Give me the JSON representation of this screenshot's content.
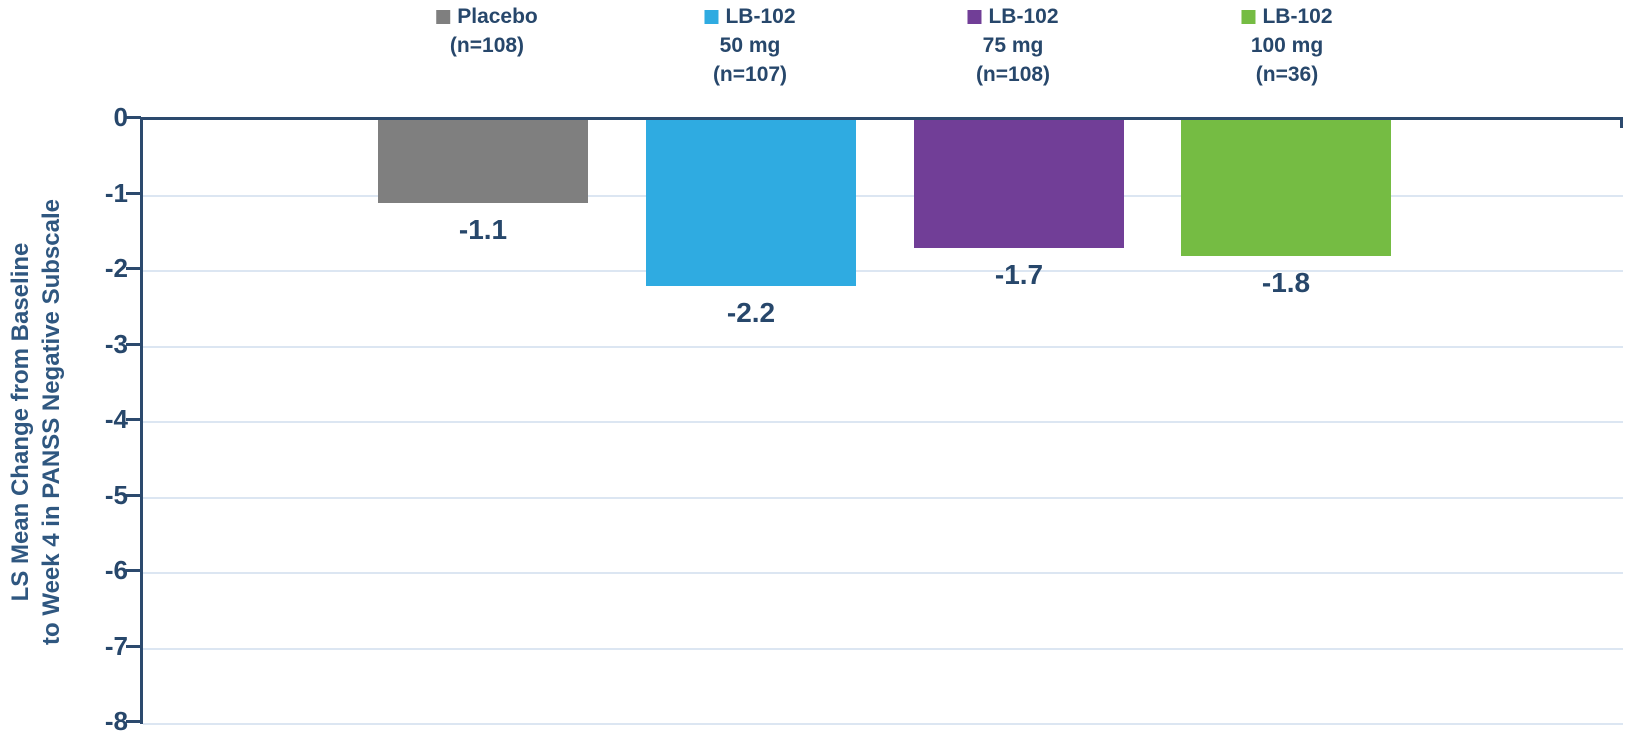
{
  "chart_data": {
    "type": "bar",
    "title": "",
    "ylabel_line1": "LS Mean Change from Baseline",
    "ylabel_line2": "to Week 4 in PANSS Negative Subscale",
    "xlabel": "",
    "ylim": [
      -8,
      0
    ],
    "yticks": [
      "0",
      "-1",
      "-2",
      "-3",
      "-4",
      "-5",
      "-6",
      "-7",
      "-8"
    ],
    "ytick_values": [
      0,
      -1,
      -2,
      -3,
      -4,
      -5,
      -6,
      -7,
      -8
    ],
    "grid": true,
    "legend_position": "top",
    "categories": [
      "Placebo (n=108)",
      "LB-102 50 mg (n=107)",
      "LB-102 75 mg (n=108)",
      "LB-102 100 mg (n=36)"
    ],
    "values": [
      -1.1,
      -2.2,
      -1.7,
      -1.8
    ],
    "groups": [
      {
        "legend_lines": [
          "Placebo",
          "(n=108)"
        ],
        "value": -1.1,
        "data_label": "-1.1",
        "color": "#7F7F7F"
      },
      {
        "legend_lines": [
          "LB-102",
          "50 mg",
          "(n=107)"
        ],
        "value": -2.2,
        "data_label": "-2.2",
        "color": "#2FABE1"
      },
      {
        "legend_lines": [
          "LB-102",
          "75 mg",
          "(n=108)"
        ],
        "value": -1.7,
        "data_label": "-1.7",
        "color": "#713E97"
      },
      {
        "legend_lines": [
          "LB-102",
          "100 mg",
          "(n=36)"
        ],
        "value": -1.8,
        "data_label": "-1.8",
        "color": "#75BC43"
      }
    ],
    "colors": {
      "text_navy": "#27476B",
      "axis_line": "#2C4A6E",
      "axis_title": "#2F5780",
      "gridline": "#DCE6F2",
      "background": "#FFFFFF"
    }
  }
}
